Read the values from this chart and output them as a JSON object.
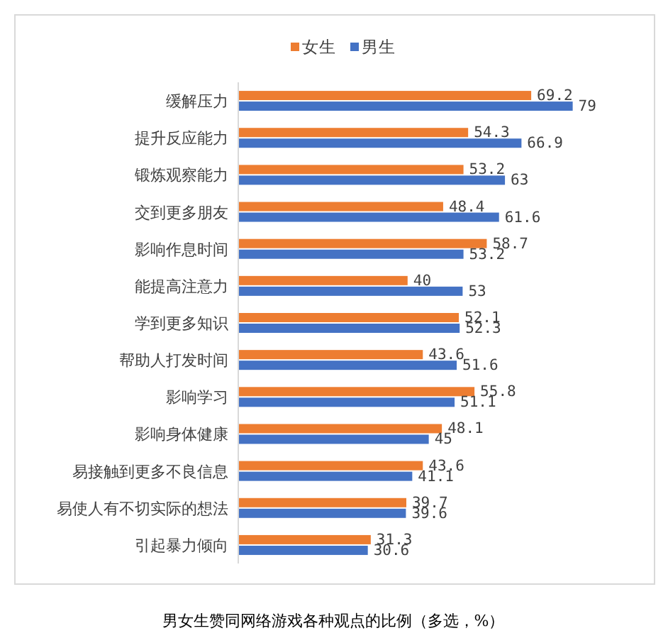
{
  "chart_data": {
    "type": "bar",
    "orientation": "horizontal",
    "categories": [
      "缓解压力",
      "提升反应能力",
      "锻炼观察能力",
      "交到更多朋友",
      "影响作息时间",
      "能提高注意力",
      "学到更多知识",
      "帮助人打发时间",
      "影响学习",
      "影响身体健康",
      "易接触到更多不良信息",
      "易使人有不切实际的想法",
      "引起暴力倾向"
    ],
    "series": [
      {
        "name": "女生",
        "color": "#ed7d31",
        "values": [
          69.2,
          54.3,
          53.2,
          48.4,
          58.7,
          40,
          52.1,
          43.6,
          55.8,
          48.1,
          43.6,
          39.7,
          31.3
        ]
      },
      {
        "name": "男生",
        "color": "#4472c4",
        "values": [
          79,
          66.9,
          63,
          61.6,
          53.2,
          53,
          52.3,
          51.6,
          51.1,
          45,
          41.1,
          39.6,
          30.6
        ]
      }
    ],
    "data_labels": true,
    "legend": "top",
    "tick_labels": "y",
    "annotations": [
      "男女生赞同网络游戏各种观点的比例（多选，%）"
    ]
  }
}
